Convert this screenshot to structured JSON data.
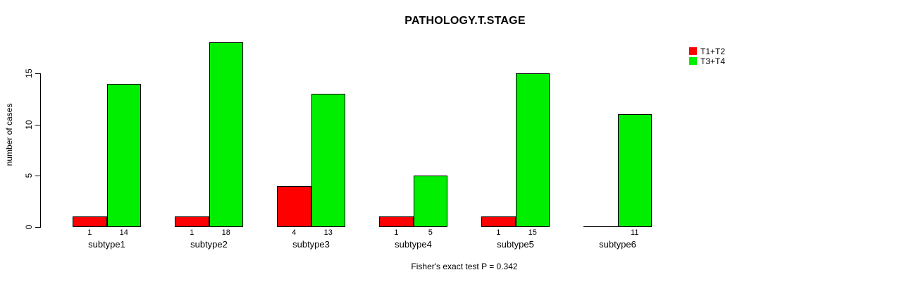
{
  "chart_data": {
    "type": "bar",
    "title": "PATHOLOGY.T.STAGE",
    "ylabel": "number of cases",
    "xlabel": "",
    "annotation": "Fisher's exact test P = 0.342",
    "categories": [
      "subtype1",
      "subtype2",
      "subtype3",
      "subtype4",
      "subtype5",
      "subtype6"
    ],
    "series": [
      {
        "name": "T1+T2",
        "color": "#FF0000",
        "values": [
          1,
          1,
          4,
          1,
          1,
          0
        ],
        "value_labels": [
          "1",
          "1",
          "4",
          "1",
          "1",
          ""
        ]
      },
      {
        "name": "T3+T4",
        "color": "#00EE00",
        "values": [
          14,
          18,
          13,
          5,
          15,
          11
        ],
        "value_labels": [
          "14",
          "18",
          "13",
          "5",
          "15",
          "11"
        ]
      }
    ],
    "yticks": [
      0,
      5,
      10,
      15
    ],
    "ylim": [
      0,
      18
    ],
    "grid": false,
    "legend_position": "top-right",
    "bar_border_color": "#000000",
    "background_color": "#FFFFFF",
    "text_color": "#000000"
  }
}
